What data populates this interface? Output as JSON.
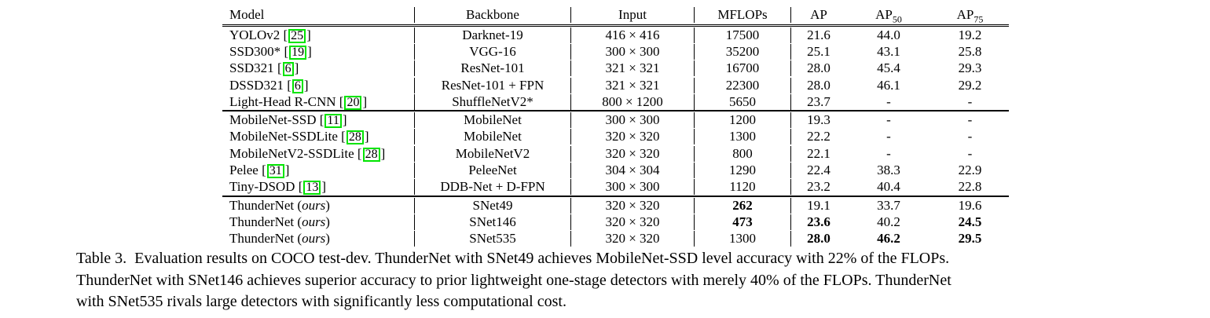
{
  "table": {
    "columns": [
      {
        "label": "Model"
      },
      {
        "label": "Backbone"
      },
      {
        "label": "Input"
      },
      {
        "label": "MFLOPs"
      },
      {
        "label": "AP"
      },
      {
        "label": "AP",
        "sub": "50"
      },
      {
        "label": "AP",
        "sub": "75"
      }
    ],
    "citation_box_color": "#00e400",
    "groups": [
      [
        {
          "model": "YOLOv2",
          "cite": "25",
          "backbone": "Darknet-19",
          "input": "416 × 416",
          "mflops": "17500",
          "ap": "21.6",
          "ap50": "44.0",
          "ap75": "19.2",
          "bold": []
        },
        {
          "model": "SSD300*",
          "cite": "19",
          "backbone": "VGG-16",
          "input": "300 × 300",
          "mflops": "35200",
          "ap": "25.1",
          "ap50": "43.1",
          "ap75": "25.8",
          "bold": []
        },
        {
          "model": "SSD321",
          "cite": "6",
          "backbone": "ResNet-101",
          "input": "321 × 321",
          "mflops": "16700",
          "ap": "28.0",
          "ap50": "45.4",
          "ap75": "29.3",
          "bold": []
        },
        {
          "model": "DSSD321",
          "cite": "6",
          "backbone": "ResNet-101 + FPN",
          "input": "321 × 321",
          "mflops": "22300",
          "ap": "28.0",
          "ap50": "46.1",
          "ap75": "29.2",
          "bold": []
        },
        {
          "model": "Light-Head R-CNN",
          "cite": "20",
          "backbone": "ShuffleNetV2*",
          "input": "800 × 1200",
          "mflops": "5650",
          "ap": "23.7",
          "ap50": "-",
          "ap75": "-",
          "bold": []
        }
      ],
      [
        {
          "model": "MobileNet-SSD",
          "cite": "11",
          "backbone": "MobileNet",
          "input": "300 × 300",
          "mflops": "1200",
          "ap": "19.3",
          "ap50": "-",
          "ap75": "-",
          "bold": []
        },
        {
          "model": "MobileNet-SSDLite",
          "cite": "28",
          "backbone": "MobileNet",
          "input": "320 × 320",
          "mflops": "1300",
          "ap": "22.2",
          "ap50": "-",
          "ap75": "-",
          "bold": []
        },
        {
          "model": "MobileNetV2-SSDLite",
          "cite": "28",
          "backbone": "MobileNetV2",
          "input": "320 × 320",
          "mflops": "800",
          "ap": "22.1",
          "ap50": "-",
          "ap75": "-",
          "bold": []
        },
        {
          "model": "Pelee",
          "cite": "31",
          "backbone": "PeleeNet",
          "input": "304 × 304",
          "mflops": "1290",
          "ap": "22.4",
          "ap50": "38.3",
          "ap75": "22.9",
          "bold": []
        },
        {
          "model": "Tiny-DSOD",
          "cite": "13",
          "backbone": "DDB-Net + D-FPN",
          "input": "300 × 300",
          "mflops": "1120",
          "ap": "23.2",
          "ap50": "40.4",
          "ap75": "22.8",
          "bold": []
        }
      ],
      [
        {
          "model": "ThunderNet",
          "ours": "ours",
          "backbone": "SNet49",
          "input": "320 × 320",
          "mflops": "262",
          "ap": "19.1",
          "ap50": "33.7",
          "ap75": "19.6",
          "bold": [
            "mflops"
          ]
        },
        {
          "model": "ThunderNet",
          "ours": "ours",
          "backbone": "SNet146",
          "input": "320 × 320",
          "mflops": "473",
          "ap": "23.6",
          "ap50": "40.2",
          "ap75": "24.5",
          "bold": [
            "mflops",
            "ap",
            "ap75"
          ]
        },
        {
          "model": "ThunderNet",
          "ours": "ours",
          "backbone": "SNet535",
          "input": "320 × 320",
          "mflops": "1300",
          "ap": "28.0",
          "ap50": "46.2",
          "ap75": "29.5",
          "bold": [
            "ap",
            "ap50",
            "ap75"
          ]
        }
      ]
    ]
  },
  "caption": {
    "lines": [
      "Table 3.  Evaluation results on COCO test-dev. ThunderNet with SNet49 achieves MobileNet-SSD level accuracy with 22% of the FLOPs.",
      "ThunderNet with SNet146 achieves superior accuracy to prior lightweight one-stage detectors with merely 40% of the FLOPs. ThunderNet",
      "with SNet535 rivals large detectors with significantly less computational cost."
    ]
  }
}
